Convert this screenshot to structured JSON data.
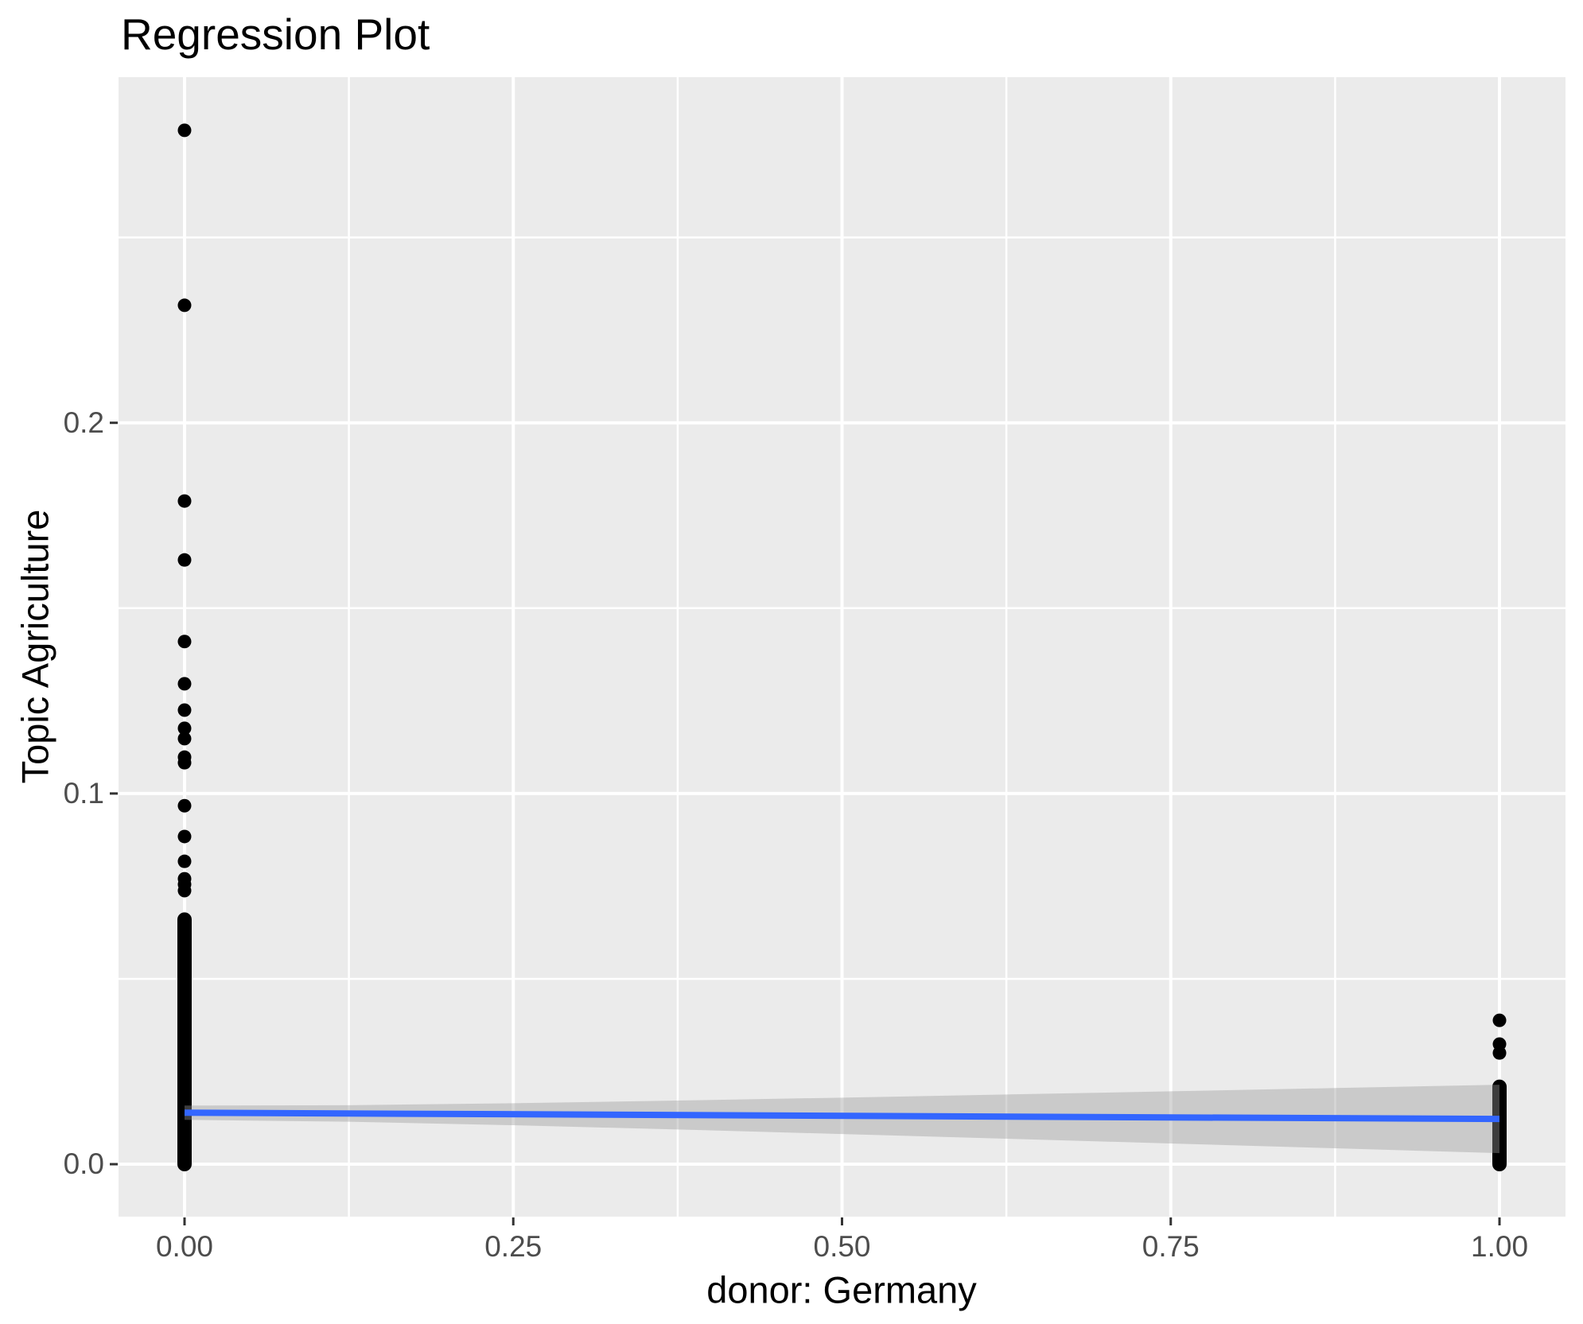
{
  "chart_data": {
    "type": "scatter",
    "title": "Regression Plot",
    "xlabel": "donor: Germany",
    "ylabel": "Topic Agriculture",
    "legend": "none",
    "grid": true,
    "panel_background": "#EBEBEB",
    "x_axis": {
      "tick_labels": [
        "0.00",
        "0.25",
        "0.50",
        "0.75",
        "1.00"
      ],
      "tick_values": [
        0,
        0.25,
        0.5,
        0.75,
        1
      ],
      "minor_values": [
        0.125,
        0.375,
        0.625,
        0.875
      ],
      "lim": [
        -0.0502,
        1.0502
      ]
    },
    "y_axis": {
      "tick_labels": [
        "0.0",
        "0.1",
        "0.2"
      ],
      "tick_values": [
        0,
        0.1,
        0.2
      ],
      "minor_values": [
        0.05,
        0.15,
        0.25
      ],
      "lim": [
        -0.01415,
        0.29325
      ]
    },
    "points": {
      "x0_outliers": {
        "x": 0,
        "y": [
          0.2789,
          0.2317,
          0.1789,
          0.163,
          0.141,
          0.1296,
          0.1225,
          0.1176,
          0.1148,
          0.1098,
          0.1083,
          0.0967,
          0.0884,
          0.0817,
          0.077,
          0.0755,
          0.0738
        ]
      },
      "x0_dense_cluster": {
        "x": 0,
        "min": 0.0,
        "max": 0.066,
        "description": "continuous column of overlapping points"
      },
      "x1_outliers": {
        "x": 1,
        "y": [
          0.0388,
          0.0324,
          0.03
        ]
      },
      "x1_dense_cluster": {
        "x": 1,
        "min": 0.0,
        "max": 0.0209,
        "description": "continuous column of overlapping points"
      }
    },
    "regression_line": {
      "x": [
        0,
        1
      ],
      "y": [
        0.0139,
        0.0122
      ]
    },
    "confidence_band": {
      "x": [
        0,
        0.125,
        0.25,
        0.375,
        0.5,
        0.625,
        0.75,
        0.875,
        1
      ],
      "upper": [
        0.01583,
        0.01592,
        0.01644,
        0.01716,
        0.01796,
        0.0188,
        0.01966,
        0.02054,
        0.02142
      ],
      "lower": [
        0.01197,
        0.01145,
        0.01051,
        0.00937,
        0.00814,
        0.00688,
        0.00559,
        0.00429,
        0.00298
      ]
    },
    "colors": {
      "panel": "#EBEBEB",
      "grid": "#FFFFFF",
      "point": "#000000",
      "line": "#3366FF",
      "band": "#999999",
      "band_alpha": 0.4,
      "axis_text": "#4D4D4D",
      "tick_mark": "#333333",
      "title": "#000000"
    }
  }
}
